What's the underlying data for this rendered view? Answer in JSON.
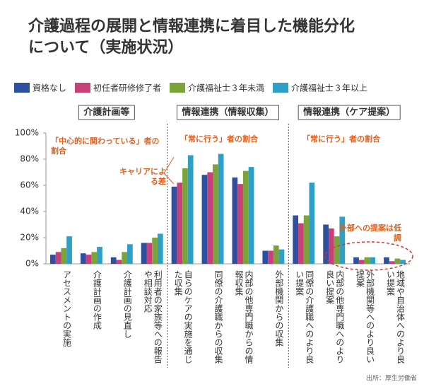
{
  "chart_data": {
    "type": "bar",
    "title_lines": [
      "介護過程の展開と情報連携に着目した機能分化",
      "について（実施状況）"
    ],
    "categories": [
      "アセスメントの実施",
      "介護計画の作成",
      "介護計画の見直し",
      "利用者の家族等への報告や相談対応",
      "自らのケアの実施を通じた収集",
      "同僚の介護職からの収集",
      "内部の他専門職からの情報収集",
      "外部機関からの収集",
      "同僚の介護職へのより良い提案",
      "内部の他専門職へのより良い提案",
      "外部機関等へのより良い提案",
      "地域や自治体へのより良い提案"
    ],
    "series": [
      {
        "name": "資格なし",
        "color": "#2f4f9f",
        "values": [
          7,
          8,
          5,
          16,
          59,
          68,
          66,
          10,
          37,
          30,
          5,
          5
        ]
      },
      {
        "name": "初任者研修修了者",
        "color": "#c8407a",
        "values": [
          9,
          7,
          3,
          16,
          62,
          70,
          61,
          10,
          31,
          27,
          3,
          2
        ]
      },
      {
        "name": "介護福祉士３年未満",
        "color": "#7ca33a",
        "values": [
          12,
          9,
          9,
          20,
          73,
          76,
          71,
          14,
          37,
          21,
          5,
          4
        ]
      },
      {
        "name": "介護福祉士３年以上",
        "color": "#2e9fc6",
        "values": [
          21,
          13,
          15,
          23,
          83,
          84,
          74,
          11,
          62,
          36,
          5,
          3
        ]
      }
    ],
    "ylim": [
      0,
      100
    ],
    "yticks": [
      {
        "value": 0,
        "label": "0%"
      },
      {
        "value": 20,
        "label": "20%"
      },
      {
        "value": 40,
        "label": "40%"
      },
      {
        "value": 60,
        "label": "60%"
      },
      {
        "value": 80,
        "label": "80%"
      },
      {
        "value": 100,
        "label": "100%"
      }
    ],
    "sections": [
      "介護計画等",
      "情報連携（情報収集）",
      "情報連携（ケア提案）"
    ],
    "annotations": [
      "「中心的に関わっている」者の割合",
      "「常に行う」者の割合",
      "「常に行う」者の割合",
      "キャリアによる差",
      "外部への提案は低調"
    ],
    "source": "出所：厚生労働省"
  }
}
